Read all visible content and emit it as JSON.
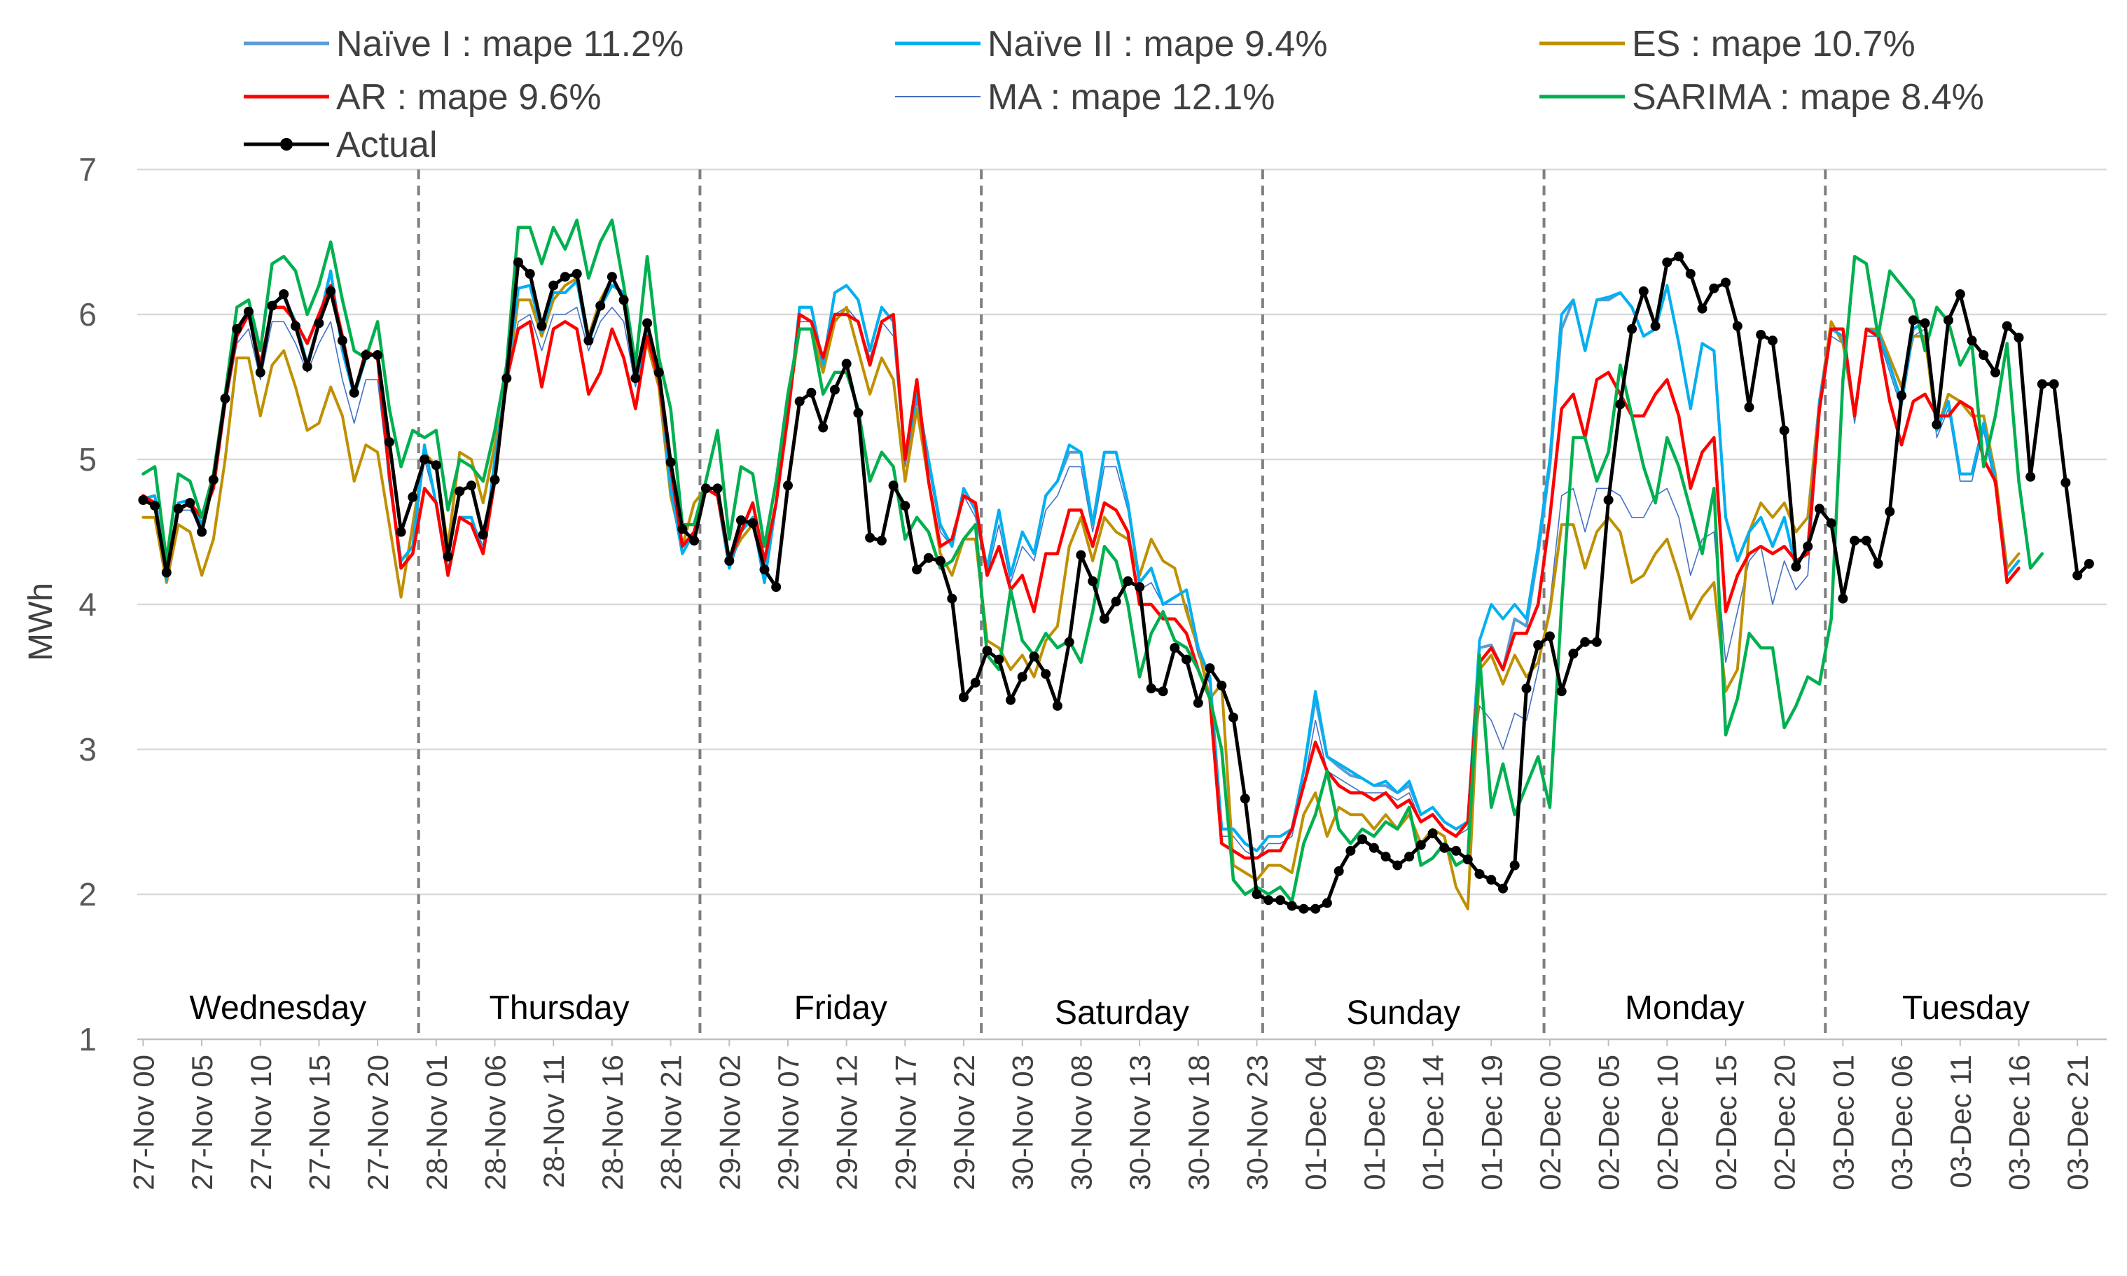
{
  "chart_data": {
    "type": "line",
    "title": "",
    "xlabel": "",
    "ylabel": "MWh",
    "ylim": [
      1,
      7
    ],
    "yticks": [
      "1",
      "2",
      "3",
      "4",
      "5",
      "6",
      "7"
    ],
    "x_tick_labels": [
      "27-Nov 00",
      "27-Nov 05",
      "27-Nov 10",
      "27-Nov 15",
      "27-Nov 20",
      "28-Nov 01",
      "28-Nov 06",
      "28-Nov 11",
      "28-Nov 16",
      "28-Nov 21",
      "29-Nov 02",
      "29-Nov 07",
      "29-Nov 12",
      "29-Nov 17",
      "29-Nov 22",
      "30-Nov 03",
      "30-Nov 08",
      "30-Nov 13",
      "30-Nov 18",
      "30-Nov 23",
      "01-Dec 04",
      "01-Dec 09",
      "01-Dec 14",
      "01-Dec 19",
      "02-Dec 00",
      "02-Dec 05",
      "02-Dec 10",
      "02-Dec 15",
      "02-Dec 20",
      "03-Dec 01",
      "03-Dec 06",
      "03-Dec 11",
      "03-Dec 16",
      "03-Dec 21"
    ],
    "day_labels": [
      "Wednesday",
      "Thursday",
      "Friday",
      "Saturday",
      "Sunday",
      "Monday",
      "Tuesday"
    ],
    "hours_per_tick": 5,
    "total_hours": 168,
    "grid": true,
    "legend_position": "top",
    "series": [
      {
        "name": "Naïve I : mape 11.2%",
        "color": "#5B9BD5",
        "width": 4,
        "values": [
          4.73,
          4.75,
          4.17,
          4.7,
          4.72,
          4.55,
          4.89,
          5.44,
          5.9,
          6.03,
          5.62,
          6.08,
          6.12,
          5.95,
          5.66,
          5.95,
          6.3,
          5.75,
          5.44,
          5.7,
          5.74,
          4.86,
          4.3,
          4.4,
          5.1,
          4.69,
          4.2,
          4.6,
          4.6,
          4.35,
          5.0,
          5.55,
          6.18,
          6.2,
          5.88,
          6.15,
          6.15,
          6.23,
          5.8,
          6.05,
          6.2,
          6.15,
          5.52,
          5.9,
          5.6,
          4.8,
          4.35,
          4.5,
          4.8,
          4.75,
          4.25,
          4.5,
          4.6,
          4.15,
          4.7,
          5.3,
          6.05,
          6.05,
          5.65,
          6.15,
          6.2,
          6.1,
          5.75,
          6.05,
          5.95,
          5.0,
          5.45,
          5.0,
          4.55,
          4.4,
          4.8,
          4.65,
          4.25,
          4.65,
          4.2,
          4.5,
          4.35,
          4.75,
          4.85,
          5.05,
          5.05,
          4.55,
          5.05,
          5.05,
          4.7,
          4.15,
          4.25,
          4.0,
          4.05,
          4.1,
          3.7,
          3.5,
          2.45,
          2.45,
          2.35,
          2.3,
          2.4,
          2.4,
          2.45,
          2.85,
          3.35,
          2.95,
          2.88,
          2.82,
          2.8,
          2.75,
          2.75,
          2.7,
          2.75,
          2.55,
          2.6,
          2.5,
          2.45,
          2.5,
          3.7,
          3.72,
          3.55,
          3.9,
          3.85,
          4.35,
          4.95,
          5.9,
          6.1,
          5.75,
          6.1,
          6.1,
          6.15,
          6.05,
          5.85,
          5.9,
          6.2,
          5.8,
          5.35,
          5.8,
          5.75,
          4.6,
          4.3,
          4.5,
          4.6,
          4.4,
          4.6,
          4.25,
          4.4,
          5.4,
          5.9,
          5.85,
          5.3,
          5.9,
          5.88,
          5.65,
          5.4,
          5.9,
          5.95,
          5.2,
          5.4,
          4.9,
          4.9,
          5.25,
          4.85,
          4.2,
          4.3
        ]
      },
      {
        "name": "Naïve II : mape 9.4%",
        "color": "#00B0F0",
        "width": 4,
        "values": [
          4.73,
          4.75,
          4.17,
          4.7,
          4.72,
          4.55,
          4.89,
          5.44,
          5.9,
          6.03,
          5.62,
          6.08,
          6.12,
          5.95,
          5.66,
          5.95,
          6.3,
          5.75,
          5.44,
          5.7,
          5.74,
          4.86,
          4.3,
          4.4,
          5.1,
          4.69,
          4.2,
          4.6,
          4.6,
          4.35,
          5.0,
          5.55,
          6.18,
          6.2,
          5.88,
          6.15,
          6.15,
          6.23,
          5.8,
          6.05,
          6.2,
          6.15,
          5.52,
          5.9,
          5.6,
          4.8,
          4.35,
          4.5,
          4.8,
          4.75,
          4.25,
          4.5,
          4.6,
          4.15,
          4.7,
          5.3,
          6.05,
          6.05,
          5.65,
          6.15,
          6.2,
          6.1,
          5.75,
          6.05,
          5.95,
          5.0,
          5.45,
          5.0,
          4.55,
          4.4,
          4.8,
          4.65,
          4.25,
          4.65,
          4.2,
          4.5,
          4.35,
          4.75,
          4.85,
          5.1,
          5.05,
          4.55,
          5.05,
          5.05,
          4.7,
          4.15,
          4.25,
          4.0,
          4.05,
          4.1,
          3.7,
          3.5,
          2.45,
          2.45,
          2.35,
          2.3,
          2.4,
          2.4,
          2.45,
          2.85,
          3.4,
          2.95,
          2.9,
          2.85,
          2.8,
          2.75,
          2.78,
          2.7,
          2.78,
          2.55,
          2.6,
          2.5,
          2.45,
          2.5,
          3.75,
          4.0,
          3.9,
          4.0,
          3.9,
          4.4,
          5.0,
          6.0,
          6.1,
          5.75,
          6.1,
          6.12,
          6.15,
          6.05,
          5.85,
          5.9,
          6.2,
          5.8,
          5.35,
          5.8,
          5.75,
          4.6,
          4.3,
          4.5,
          4.6,
          4.4,
          4.6,
          4.25,
          4.4,
          5.4,
          5.9,
          5.85,
          5.3,
          5.9,
          5.88,
          5.65,
          5.4,
          5.9,
          5.95,
          5.2,
          5.4,
          4.9,
          4.9,
          5.25,
          4.85,
          4.2,
          4.3
        ]
      },
      {
        "name": "ES : mape 10.7%",
        "color": "#BF9000",
        "width": 4,
        "values": [
          4.6,
          4.6,
          4.15,
          4.55,
          4.5,
          4.2,
          4.45,
          5.0,
          5.7,
          5.7,
          5.3,
          5.65,
          5.75,
          5.5,
          5.2,
          5.25,
          5.5,
          5.3,
          4.85,
          5.1,
          5.05,
          4.55,
          4.05,
          4.55,
          5.05,
          4.95,
          4.4,
          5.05,
          5.0,
          4.7,
          5.1,
          5.5,
          6.1,
          6.1,
          5.85,
          6.1,
          6.2,
          6.25,
          5.85,
          6.1,
          6.25,
          6.1,
          5.6,
          5.8,
          5.5,
          4.75,
          4.4,
          4.7,
          4.8,
          4.8,
          4.3,
          4.45,
          4.55,
          4.25,
          4.7,
          5.35,
          5.9,
          5.9,
          5.6,
          5.95,
          6.05,
          5.75,
          5.45,
          5.7,
          5.55,
          4.85,
          5.35,
          4.85,
          4.35,
          4.2,
          4.45,
          4.45,
          3.75,
          3.7,
          3.55,
          3.65,
          3.5,
          3.75,
          3.85,
          4.4,
          4.6,
          4.3,
          4.6,
          4.5,
          4.45,
          4.2,
          4.45,
          4.3,
          4.25,
          3.95,
          3.7,
          3.35,
          3.45,
          2.2,
          2.15,
          2.1,
          2.2,
          2.2,
          2.15,
          2.55,
          2.7,
          2.4,
          2.6,
          2.55,
          2.55,
          2.45,
          2.55,
          2.45,
          2.55,
          2.35,
          2.45,
          2.4,
          2.05,
          1.9,
          3.55,
          3.65,
          3.45,
          3.65,
          3.5,
          3.6,
          3.95,
          4.55,
          4.55,
          4.25,
          4.5,
          4.6,
          4.5,
          4.15,
          4.2,
          4.35,
          4.45,
          4.2,
          3.9,
          4.05,
          4.15,
          3.4,
          3.55,
          4.5,
          4.7,
          4.6,
          4.7,
          4.5,
          4.6,
          5.4,
          5.95,
          5.8,
          5.3,
          5.9,
          5.9,
          5.7,
          5.5,
          5.85,
          5.85,
          5.2,
          5.45,
          5.4,
          5.3,
          5.3,
          4.9,
          4.25,
          4.35
        ]
      },
      {
        "name": "AR : mape 9.6%",
        "color": "#FF0000",
        "width": 4.5,
        "values": [
          4.75,
          4.7,
          4.2,
          4.65,
          4.7,
          4.6,
          4.8,
          5.4,
          5.85,
          6.0,
          5.65,
          6.05,
          6.05,
          5.95,
          5.8,
          6.0,
          6.2,
          5.85,
          5.45,
          5.75,
          5.7,
          4.9,
          4.25,
          4.35,
          4.8,
          4.7,
          4.2,
          4.6,
          4.55,
          4.35,
          4.85,
          5.55,
          5.9,
          5.95,
          5.5,
          5.9,
          5.95,
          5.9,
          5.45,
          5.6,
          5.9,
          5.7,
          5.35,
          5.85,
          5.55,
          4.95,
          4.4,
          4.5,
          4.8,
          4.75,
          4.3,
          4.5,
          4.7,
          4.3,
          4.7,
          5.3,
          6.0,
          5.95,
          5.7,
          6.0,
          6.0,
          5.95,
          5.65,
          5.95,
          6.0,
          5.0,
          5.55,
          4.85,
          4.4,
          4.45,
          4.75,
          4.7,
          4.2,
          4.4,
          4.1,
          4.2,
          3.95,
          4.35,
          4.35,
          4.65,
          4.65,
          4.4,
          4.7,
          4.65,
          4.5,
          4.0,
          4.0,
          3.9,
          3.9,
          3.8,
          3.55,
          3.35,
          2.35,
          2.3,
          2.25,
          2.25,
          2.3,
          2.3,
          2.45,
          2.75,
          3.05,
          2.85,
          2.75,
          2.7,
          2.7,
          2.65,
          2.7,
          2.6,
          2.65,
          2.5,
          2.55,
          2.45,
          2.4,
          2.5,
          3.6,
          3.7,
          3.55,
          3.8,
          3.8,
          4.0,
          4.6,
          5.35,
          5.45,
          5.15,
          5.55,
          5.6,
          5.45,
          5.3,
          5.3,
          5.45,
          5.55,
          5.3,
          4.8,
          5.05,
          5.15,
          3.95,
          4.2,
          4.35,
          4.4,
          4.35,
          4.4,
          4.3,
          4.35,
          5.35,
          5.9,
          5.9,
          5.3,
          5.9,
          5.85,
          5.4,
          5.1,
          5.4,
          5.45,
          5.3,
          5.3,
          5.4,
          5.35,
          5.0,
          4.85,
          4.15,
          4.25
        ]
      },
      {
        "name": "MA : mape 12.1%",
        "color": "#4472C4",
        "width": 1.6,
        "values": [
          4.7,
          4.7,
          4.2,
          4.65,
          4.65,
          4.55,
          4.85,
          5.35,
          5.8,
          5.9,
          5.55,
          5.95,
          5.95,
          5.8,
          5.6,
          5.8,
          5.95,
          5.55,
          5.25,
          5.55,
          5.55,
          4.85,
          4.3,
          4.4,
          5.0,
          4.7,
          4.25,
          4.6,
          4.6,
          4.4,
          4.9,
          5.5,
          5.95,
          6.0,
          5.75,
          6.0,
          6.0,
          6.05,
          5.75,
          5.95,
          6.05,
          5.95,
          5.5,
          5.85,
          5.55,
          4.8,
          4.4,
          4.5,
          4.8,
          4.75,
          4.25,
          4.5,
          4.6,
          4.2,
          4.7,
          5.3,
          5.95,
          5.95,
          5.6,
          6.0,
          6.05,
          5.95,
          5.7,
          5.95,
          5.85,
          4.95,
          5.4,
          4.95,
          4.5,
          4.4,
          4.75,
          4.6,
          4.2,
          4.55,
          4.15,
          4.4,
          4.3,
          4.65,
          4.75,
          4.95,
          4.95,
          4.5,
          4.95,
          4.95,
          4.65,
          4.1,
          4.15,
          4.0,
          4.0,
          4.0,
          3.65,
          3.45,
          2.4,
          2.4,
          2.3,
          2.25,
          2.35,
          2.35,
          2.4,
          2.75,
          3.2,
          2.85,
          2.8,
          2.75,
          2.7,
          2.7,
          2.7,
          2.65,
          2.7,
          2.5,
          2.55,
          2.45,
          2.4,
          2.45,
          3.3,
          3.2,
          3.0,
          3.25,
          3.2,
          3.55,
          4.0,
          4.75,
          4.8,
          4.5,
          4.8,
          4.8,
          4.75,
          4.6,
          4.6,
          4.75,
          4.8,
          4.6,
          4.2,
          4.45,
          4.5,
          3.6,
          3.95,
          4.3,
          4.4,
          4.0,
          4.3,
          4.1,
          4.2,
          5.3,
          5.85,
          5.8,
          5.25,
          5.85,
          5.85,
          5.6,
          5.35,
          5.85,
          5.9,
          5.15,
          5.35,
          4.85,
          4.85,
          5.2,
          4.8,
          4.2,
          4.3
        ]
      },
      {
        "name": "SARIMA : mape 8.4%",
        "color": "#00B050",
        "width": 4.5,
        "values": [
          4.9,
          4.95,
          4.3,
          4.9,
          4.85,
          4.6,
          4.9,
          5.45,
          6.05,
          6.1,
          5.75,
          6.35,
          6.4,
          6.3,
          6.0,
          6.2,
          6.5,
          6.1,
          5.75,
          5.7,
          5.95,
          5.35,
          4.95,
          5.2,
          5.15,
          5.2,
          4.65,
          5.0,
          4.95,
          4.85,
          5.2,
          5.65,
          6.6,
          6.6,
          6.35,
          6.6,
          6.45,
          6.65,
          6.25,
          6.5,
          6.65,
          6.2,
          5.65,
          6.4,
          5.7,
          5.35,
          4.55,
          4.55,
          4.85,
          5.2,
          4.45,
          4.95,
          4.9,
          4.4,
          4.85,
          5.45,
          5.9,
          5.9,
          5.45,
          5.6,
          5.6,
          5.35,
          4.85,
          5.05,
          4.95,
          4.45,
          4.6,
          4.5,
          4.25,
          4.3,
          4.45,
          4.55,
          3.65,
          3.55,
          4.1,
          3.75,
          3.65,
          3.8,
          3.7,
          3.75,
          3.6,
          3.95,
          4.4,
          4.3,
          4.0,
          3.5,
          3.8,
          3.95,
          3.75,
          3.7,
          3.55,
          3.35,
          3.0,
          2.1,
          2.0,
          2.05,
          2.0,
          2.05,
          1.95,
          2.35,
          2.55,
          2.85,
          2.45,
          2.35,
          2.45,
          2.4,
          2.5,
          2.45,
          2.6,
          2.2,
          2.25,
          2.35,
          2.2,
          2.25,
          3.65,
          2.6,
          2.9,
          2.55,
          2.75,
          2.95,
          2.6,
          4.0,
          5.15,
          5.15,
          4.85,
          5.05,
          5.65,
          5.3,
          4.95,
          4.7,
          5.15,
          4.95,
          4.65,
          4.35,
          4.8,
          3.1,
          3.35,
          3.8,
          3.7,
          3.7,
          3.15,
          3.3,
          3.5,
          3.45,
          3.9,
          5.55,
          6.4,
          6.35,
          5.85,
          6.3,
          6.2,
          6.1,
          5.75,
          6.05,
          5.95,
          5.65,
          5.8,
          4.95,
          5.3,
          5.8,
          4.85,
          4.25,
          4.35
        ]
      },
      {
        "name": "Actual",
        "color": "#000000",
        "width": 5,
        "markers": true,
        "values": [
          4.72,
          4.68,
          4.22,
          4.66,
          4.7,
          4.5,
          4.86,
          5.42,
          5.9,
          6.02,
          5.6,
          6.06,
          6.14,
          5.92,
          5.64,
          5.94,
          6.16,
          5.82,
          5.46,
          5.72,
          5.72,
          5.12,
          4.5,
          4.74,
          5.0,
          4.96,
          4.33,
          4.78,
          4.82,
          4.48,
          4.86,
          5.56,
          6.36,
          6.28,
          5.92,
          6.2,
          6.26,
          6.28,
          5.82,
          6.06,
          6.26,
          6.1,
          5.56,
          5.94,
          5.6,
          4.98,
          4.52,
          4.44,
          4.8,
          4.8,
          4.3,
          4.58,
          4.56,
          4.24,
          4.12,
          4.82,
          5.4,
          5.46,
          5.22,
          5.48,
          5.66,
          5.32,
          4.46,
          4.44,
          4.82,
          4.68,
          4.24,
          4.32,
          4.3,
          4.04,
          3.36,
          3.46,
          3.68,
          3.62,
          3.34,
          3.5,
          3.64,
          3.52,
          3.3,
          3.74,
          4.34,
          4.16,
          3.9,
          4.02,
          4.16,
          4.12,
          3.42,
          3.4,
          3.7,
          3.62,
          3.32,
          3.56,
          3.44,
          3.22,
          2.66,
          2.0,
          1.96,
          1.96,
          1.92,
          1.9,
          1.9,
          1.94,
          2.16,
          2.3,
          2.38,
          2.32,
          2.26,
          2.2,
          2.26,
          2.34,
          2.42,
          2.32,
          2.3,
          2.24,
          2.14,
          2.1,
          2.04,
          2.2,
          3.42,
          3.72,
          3.78,
          3.4,
          3.66,
          3.74,
          3.74,
          4.72,
          5.38,
          5.9,
          6.16,
          5.92,
          6.36,
          6.4,
          6.28,
          6.04,
          6.18,
          6.22,
          5.92,
          5.36,
          5.86,
          5.82,
          5.2,
          4.26,
          4.4,
          4.66,
          4.56,
          4.04,
          4.44,
          4.44,
          4.28,
          4.64,
          5.44,
          5.96,
          5.94,
          5.24,
          5.96,
          6.14,
          5.82,
          5.72,
          5.6,
          5.92,
          5.84,
          4.88,
          5.52,
          5.52,
          4.84,
          4.2,
          4.28
        ]
      }
    ]
  }
}
